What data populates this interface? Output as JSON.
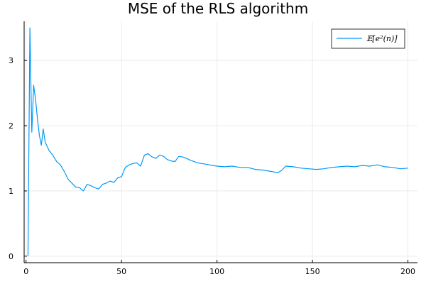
{
  "chart_data": {
    "type": "line",
    "title": "MSE of the RLS algorithm",
    "xlabel": "",
    "ylabel": "",
    "xlim": [
      -1,
      205
    ],
    "ylim": [
      -0.1,
      3.6
    ],
    "xticks": [
      0,
      50,
      100,
      150,
      200
    ],
    "yticks": [
      0,
      1,
      2,
      3
    ],
    "grid": true,
    "legend_position": "top-right",
    "series": [
      {
        "name": "𝔼[e²(n)]",
        "color": "#009af9",
        "x": [
          1,
          2,
          3,
          4,
          5,
          6,
          7,
          8,
          9,
          10,
          12,
          14,
          16,
          18,
          20,
          22,
          24,
          26,
          28,
          30,
          32,
          34,
          36,
          38,
          40,
          42,
          44,
          46,
          48,
          50,
          52,
          54,
          56,
          58,
          60,
          62,
          64,
          66,
          68,
          70,
          72,
          74,
          76,
          78,
          80,
          82,
          84,
          86,
          88,
          90,
          92,
          94,
          96,
          98,
          100,
          104,
          108,
          112,
          116,
          120,
          124,
          128,
          132,
          134,
          136,
          140,
          144,
          148,
          152,
          156,
          160,
          164,
          168,
          172,
          176,
          180,
          184,
          188,
          192,
          196,
          200
        ],
        "values": [
          0.0,
          3.5,
          1.9,
          2.62,
          2.4,
          2.1,
          1.85,
          1.7,
          1.95,
          1.75,
          1.62,
          1.55,
          1.45,
          1.4,
          1.3,
          1.18,
          1.12,
          1.06,
          1.05,
          1.0,
          1.1,
          1.08,
          1.05,
          1.03,
          1.1,
          1.12,
          1.15,
          1.13,
          1.2,
          1.22,
          1.36,
          1.4,
          1.42,
          1.43,
          1.38,
          1.55,
          1.57,
          1.52,
          1.5,
          1.55,
          1.53,
          1.48,
          1.46,
          1.45,
          1.53,
          1.52,
          1.5,
          1.47,
          1.45,
          1.43,
          1.42,
          1.41,
          1.4,
          1.39,
          1.38,
          1.37,
          1.38,
          1.36,
          1.36,
          1.33,
          1.32,
          1.3,
          1.28,
          1.32,
          1.38,
          1.37,
          1.35,
          1.34,
          1.33,
          1.34,
          1.36,
          1.37,
          1.38,
          1.37,
          1.39,
          1.38,
          1.4,
          1.37,
          1.36,
          1.34,
          1.35
        ]
      }
    ]
  }
}
